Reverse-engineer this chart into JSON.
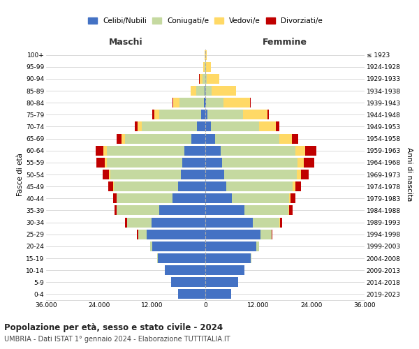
{
  "age_groups": [
    "0-4",
    "5-9",
    "10-14",
    "15-19",
    "20-24",
    "25-29",
    "30-34",
    "35-39",
    "40-44",
    "45-49",
    "50-54",
    "55-59",
    "60-64",
    "65-69",
    "70-74",
    "75-79",
    "80-84",
    "85-89",
    "90-94",
    "95-99",
    "100+"
  ],
  "birth_years": [
    "2019-2023",
    "2014-2018",
    "2009-2013",
    "2004-2008",
    "1999-2003",
    "1994-1998",
    "1989-1993",
    "1984-1988",
    "1979-1983",
    "1974-1978",
    "1969-1973",
    "1964-1968",
    "1959-1963",
    "1954-1958",
    "1949-1953",
    "1944-1948",
    "1939-1943",
    "1934-1938",
    "1929-1933",
    "1924-1928",
    "≤ 1923"
  ],
  "maschi": {
    "celibi": [
      6200,
      7800,
      9200,
      10800,
      12000,
      13200,
      12200,
      10500,
      7500,
      6200,
      5500,
      5200,
      4800,
      3200,
      1900,
      900,
      350,
      120,
      40,
      15,
      5
    ],
    "coniugati": [
      0,
      0,
      0,
      50,
      500,
      2000,
      5500,
      9500,
      12500,
      14500,
      16000,
      17000,
      17500,
      15000,
      12500,
      9500,
      5500,
      2000,
      600,
      150,
      25
    ],
    "vedovi": [
      0,
      0,
      0,
      0,
      0,
      0,
      0,
      0,
      50,
      150,
      350,
      600,
      700,
      700,
      900,
      1200,
      1400,
      1200,
      700,
      300,
      80
    ],
    "divorziati": [
      0,
      0,
      0,
      0,
      50,
      200,
      400,
      600,
      800,
      1100,
      1400,
      1800,
      1800,
      1100,
      600,
      350,
      150,
      50,
      15,
      8,
      3
    ]
  },
  "femmine": {
    "nubili": [
      5900,
      7400,
      8800,
      10300,
      11500,
      12500,
      10800,
      8800,
      6000,
      4800,
      4200,
      3800,
      3400,
      2200,
      1200,
      500,
      180,
      60,
      20,
      8,
      3
    ],
    "coniugate": [
      0,
      0,
      0,
      50,
      600,
      2500,
      6000,
      10000,
      13000,
      15000,
      16500,
      17000,
      17000,
      14500,
      11000,
      8000,
      4000,
      1400,
      350,
      80,
      12
    ],
    "vedove": [
      0,
      0,
      0,
      0,
      0,
      0,
      50,
      150,
      300,
      500,
      900,
      1500,
      2200,
      2800,
      3800,
      5500,
      6000,
      5500,
      2800,
      1100,
      250
    ],
    "divorziate": [
      0,
      0,
      0,
      0,
      50,
      200,
      500,
      800,
      1100,
      1400,
      1800,
      2300,
      2500,
      1500,
      750,
      350,
      150,
      50,
      15,
      8,
      3
    ]
  },
  "colors": {
    "celibi": "#4472C4",
    "coniugati": "#C5D9A0",
    "vedovi": "#FFD966",
    "divorziati": "#C00000"
  },
  "xlim": 36000,
  "title": "Popolazione per età, sesso e stato civile - 2024",
  "subtitle": "UMBRIA - Dati ISTAT 1° gennaio 2024 - Elaborazione TUTTITALIA.IT",
  "xlabel_left": "Maschi",
  "xlabel_right": "Femmine",
  "ylabel_left": "Fasce di età",
  "ylabel_right": "Anni di nascita",
  "xtick_labels": [
    "36.000",
    "24.000",
    "12.000",
    "0",
    "12.000",
    "24.000",
    "36.000"
  ]
}
